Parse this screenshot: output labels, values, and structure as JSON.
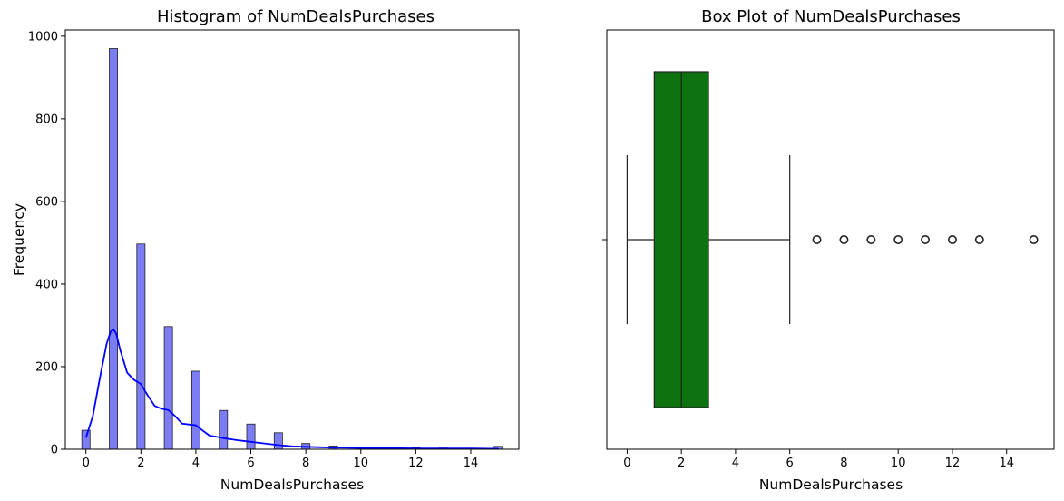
{
  "chart_data": [
    {
      "type": "bar",
      "title": "Histogram of NumDealsPurchases",
      "xlabel": "NumDealsPurchases",
      "ylabel": "Frequency",
      "xlim": [
        -0.75,
        15.75
      ],
      "ylim": [
        0,
        1015
      ],
      "xticks": [
        0,
        2,
        4,
        6,
        8,
        10,
        12,
        14
      ],
      "yticks": [
        0,
        200,
        400,
        600,
        800,
        1000
      ],
      "bar_width": 0.3,
      "bar_color": "#7c7cf5",
      "kde_color": "#0000ff",
      "x": [
        0,
        1,
        2,
        3,
        4,
        5,
        6,
        7,
        8,
        9,
        10,
        11,
        12,
        13,
        15
      ],
      "values": [
        46,
        970,
        497,
        297,
        189,
        94,
        61,
        40,
        14,
        8,
        5,
        5,
        4,
        3,
        7
      ],
      "kde": {
        "x": [
          0,
          0.25,
          0.5,
          0.75,
          0.9,
          1.0,
          1.1,
          1.25,
          1.5,
          1.75,
          2.0,
          2.25,
          2.5,
          2.75,
          3.0,
          3.25,
          3.5,
          3.75,
          4.0,
          4.25,
          4.5,
          4.75,
          5.0,
          5.5,
          6.0,
          6.5,
          7.0,
          7.5,
          8.0,
          9.0,
          10.0,
          11.0,
          12.0,
          13.0,
          14.0,
          15.0
        ],
        "y": [
          28,
          80,
          170,
          255,
          285,
          290,
          280,
          240,
          185,
          168,
          158,
          130,
          105,
          98,
          95,
          80,
          62,
          60,
          58,
          45,
          33,
          30,
          27,
          22,
          18,
          14,
          10,
          7,
          6,
          4,
          3,
          3,
          2,
          2,
          2,
          1
        ]
      }
    },
    {
      "type": "box",
      "title": "Box Plot of NumDealsPurchases",
      "xlabel": "NumDealsPurchases",
      "xlim": [
        -0.75,
        15.75
      ],
      "xticks": [
        0,
        2,
        4,
        6,
        8,
        10,
        12,
        14
      ],
      "box_color": "#0e720e",
      "whisker_low": 0,
      "q1": 1,
      "median": 2,
      "q3": 3,
      "whisker_high": 6,
      "outliers": [
        7,
        8,
        9,
        10,
        11,
        12,
        13,
        15
      ]
    }
  ]
}
